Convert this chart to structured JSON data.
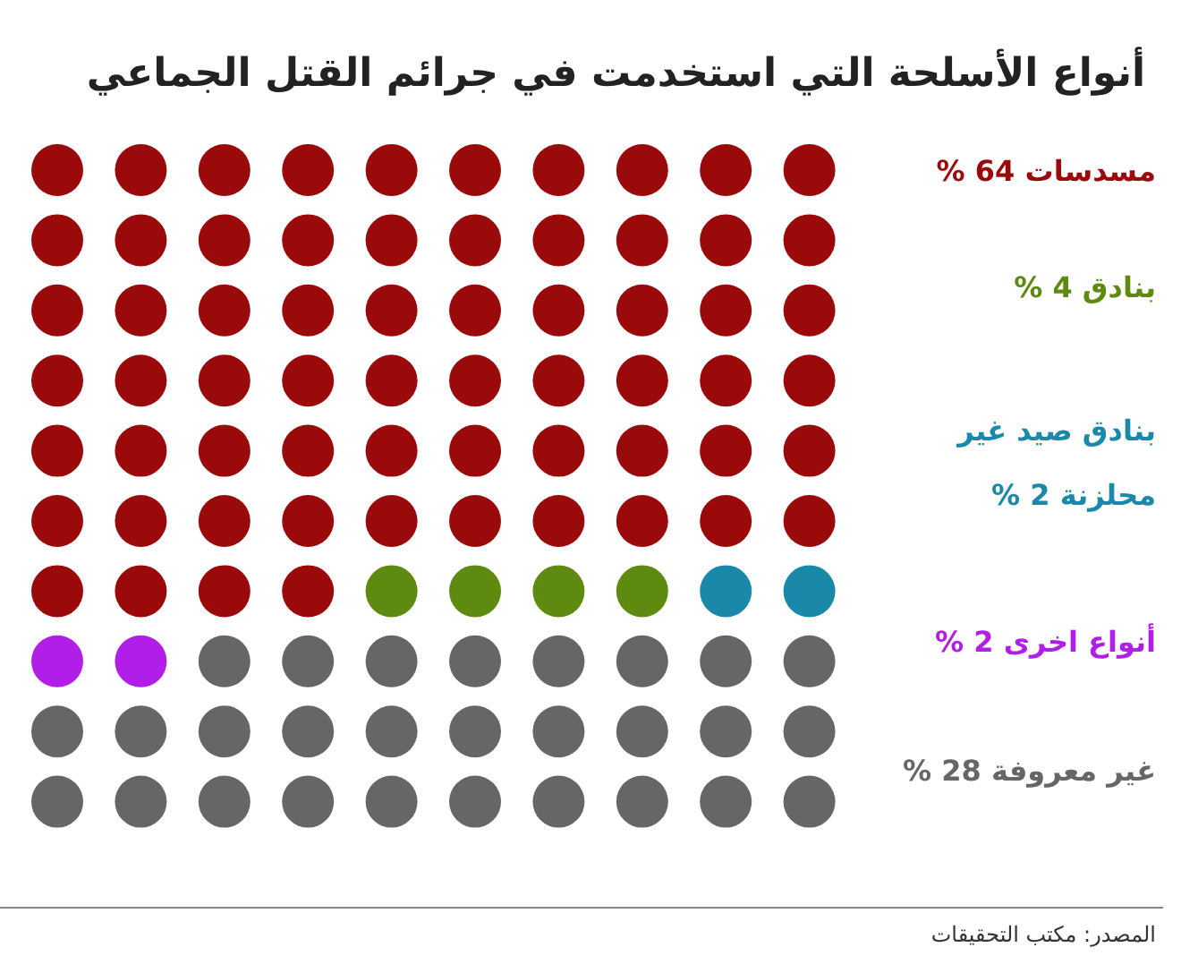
{
  "chart_data": {
    "type": "other",
    "title": "أنواع الأسلحة التي استخدمت في جرائم القتل الجماعي",
    "categories": [
      "مسدسات",
      "بنادق",
      "بنادق صيد غير محلزنة",
      "أنواع اخرى",
      "غير معروفة"
    ],
    "values": [
      64,
      4,
      2,
      2,
      28
    ],
    "value_labels": [
      "64 %",
      "4 %",
      "2 %",
      "2 %",
      "28 %"
    ],
    "colors": [
      "#9a0a0a",
      "#5e8a0f",
      "#1a88a8",
      "#b01ee8",
      "#666666"
    ],
    "annotations": [
      "المصدر: مكتب التحقيقات"
    ]
  }
}
